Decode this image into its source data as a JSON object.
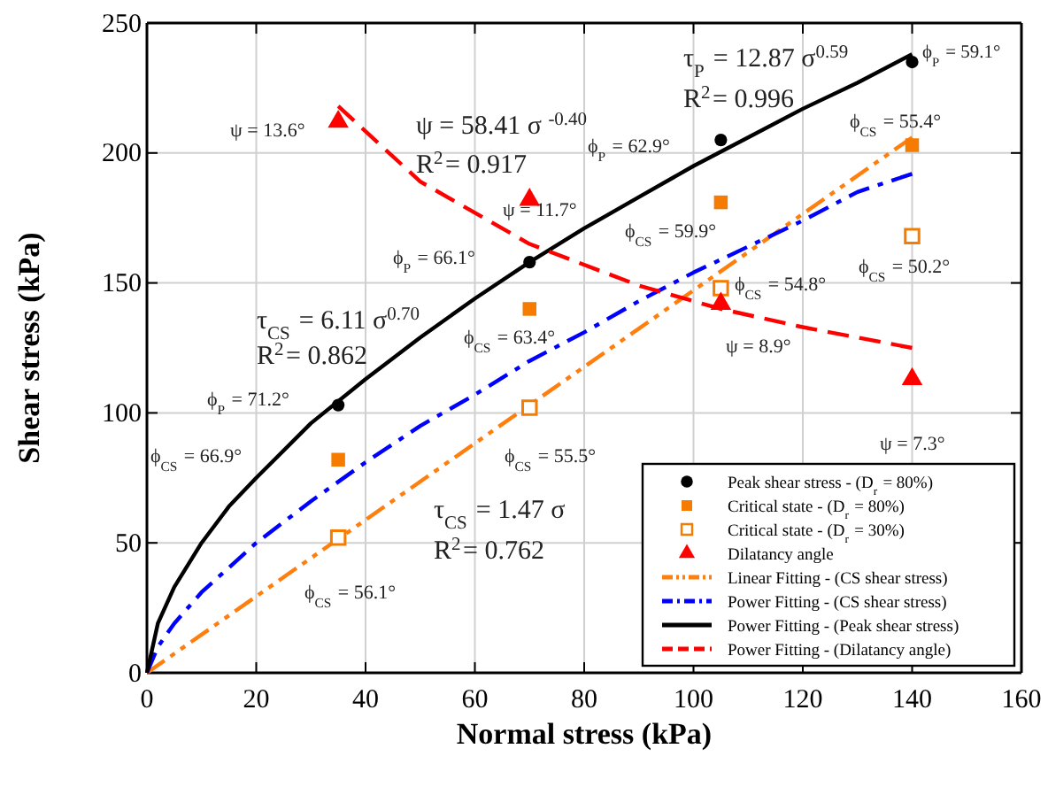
{
  "chart_data": {
    "type": "scatter",
    "xlabel": "Normal stress (kPa)",
    "ylabel": "Shear stress (kPa)",
    "xlim": [
      0,
      160
    ],
    "xticks": [
      0,
      20,
      40,
      60,
      80,
      100,
      120,
      140,
      160
    ],
    "ylim": [
      0,
      250
    ],
    "yticks": [
      0,
      50,
      100,
      150,
      200,
      250
    ],
    "grid": true,
    "legend": "bottom right",
    "series": [
      {
        "name": "Peak shear stress - (D$_{r}$ = 80%)",
        "marker": "circle",
        "color": "#000000",
        "x": [
          35,
          70,
          105,
          140
        ],
        "values": [
          103,
          158,
          205,
          235
        ]
      },
      {
        "name": "Critical state - (D$_{r}$ = 80%)",
        "marker": "square",
        "color": "#f57c00",
        "x": [
          35,
          70,
          105,
          140
        ],
        "values": [
          82,
          140,
          181,
          203
        ]
      },
      {
        "name": "Critical state - (D$_{r}$ = 30%)",
        "marker": "square-open",
        "color": "#f57c00",
        "x": [
          35,
          70,
          105,
          140
        ],
        "values": [
          52,
          102,
          148,
          168
        ]
      },
      {
        "name": "Dilatancy angle",
        "marker": "triangle",
        "color": "#ff0000",
        "x": [
          35,
          70,
          105,
          140
        ],
        "values": [
          212,
          182,
          142,
          113
        ]
      },
      {
        "name": "Linear Fitting - (CS shear stress)",
        "type": "line",
        "line_style": "dashdotdot",
        "color": "#ff7f0e",
        "x": [
          0,
          140
        ],
        "values": [
          0,
          206
        ]
      },
      {
        "name": "Power Fitting - (CS shear stress)",
        "type": "line",
        "line_style": "dashdot",
        "color": "#0000ff",
        "x": [
          0,
          2,
          5,
          10,
          20,
          30,
          40,
          50,
          60,
          70,
          80,
          90,
          100,
          110,
          120,
          130,
          140
        ],
        "values": [
          0,
          10,
          19,
          31,
          50,
          66,
          81,
          95,
          107,
          120,
          131,
          143,
          154,
          164,
          174,
          185,
          192
        ]
      },
      {
        "name": "Power Fitting - (Peak shear stress)",
        "type": "line",
        "line_style": "solid",
        "color": "#000000",
        "x": [
          0,
          2,
          5,
          10,
          15,
          20,
          30,
          40,
          50,
          60,
          70,
          80,
          90,
          100,
          110,
          120,
          130,
          140
        ],
        "values": [
          0,
          19,
          33,
          50,
          64,
          75,
          96,
          113,
          129,
          144,
          158,
          171,
          183,
          195,
          206,
          217,
          227,
          238
        ]
      },
      {
        "name": "Power Fitting - (Dilatancy angle)",
        "type": "line",
        "line_style": "dashed",
        "color": "#ff0000",
        "x": [
          35,
          50,
          70,
          90,
          105,
          120,
          140
        ],
        "values": [
          218,
          189,
          165,
          149,
          140,
          133,
          125
        ]
      }
    ],
    "annotations": [
      "ψ = 13.6°",
      "ψ = 58.41 σ $^{-0.40}$",
      "R$^{2}$= 0.917",
      "ψ = 11.7°",
      "τ$_{P}$ = 12.87 σ$^{0.59}$",
      "R$^{2}$= 0.996",
      "ϕ$_{P}$ = 59.1°",
      "ϕ$_{CS}$ = 55.4°",
      "ϕ$_{P}$ = 62.9°",
      "ϕ$_{P}$ = 66.1°",
      "ϕ$_{CS}$ = 59.9°",
      "τ$_{CS}$ = 6.11 σ$^{0.70}$",
      "R$^{2}$= 0.862",
      "ϕ$_{CS}$ = 63.4°",
      "ϕ$_{CS}$ = 54.8°",
      "ϕ$_{CS}$ = 50.2°",
      "ψ = 8.9°",
      "ψ = 7.3°",
      "ϕ$_{P}$ = 71.2°",
      "ϕ$_{CS}$ = 66.9°",
      "ϕ$_{CS}$ = 55.5°",
      "τ$_{CS}$ = 1.47 σ",
      "R$^{2}$= 0.762",
      "ϕ$_{CS}$ = 56.1°"
    ]
  }
}
